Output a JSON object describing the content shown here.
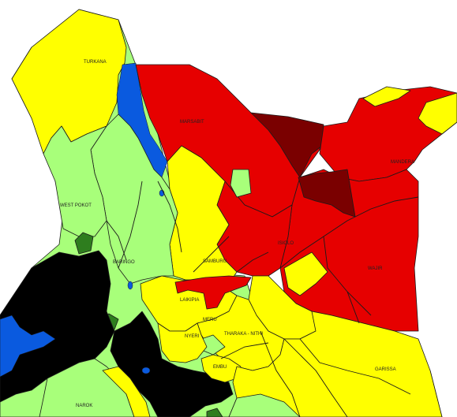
{
  "map": {
    "colors": {
      "yellow": "#ffff00",
      "light_green": "#a8ff7a",
      "dark_green": "#2e7d1e",
      "red": "#e60000",
      "dark_red": "#7a0000",
      "black": "#000000",
      "blue": "#0a5adf",
      "background": "#ffffff"
    },
    "labels": {
      "turkana": "TURKANA",
      "marsabit": "MARSABIT",
      "mandera": "MANDERA",
      "west_pokot": "WEST POKOT",
      "baringo": "BARINGO",
      "samburu": "SAMBURU",
      "isiolo": "ISIOLO",
      "wajir": "WAJIR",
      "laikipia": "LAIKIPIA",
      "meru": "MERU",
      "nyeri": "NYERI",
      "tharaka_nithi": "THARAKA - NITHI",
      "embu": "EMBU",
      "garissa": "GARISSA",
      "narok": "NAROK"
    }
  }
}
